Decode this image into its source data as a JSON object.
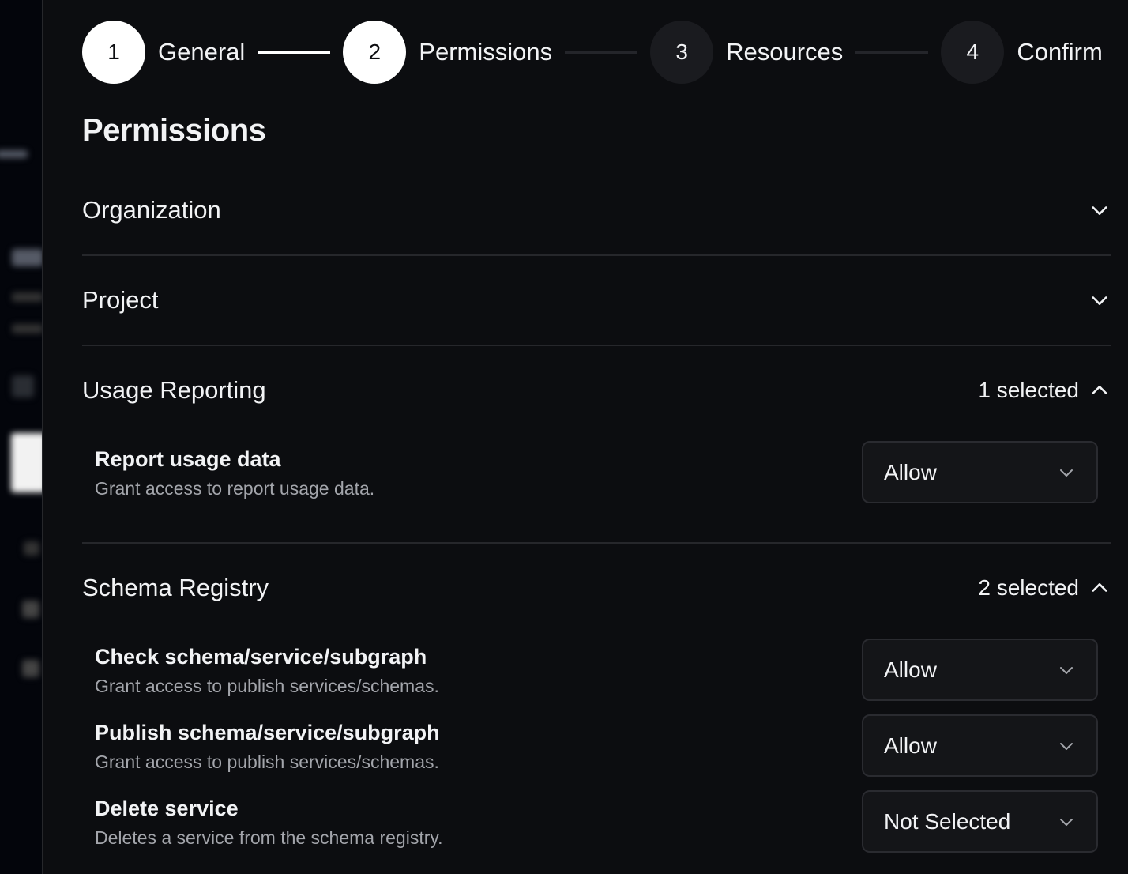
{
  "stepper": {
    "steps": [
      {
        "number": "1",
        "label": "General",
        "state": "complete"
      },
      {
        "number": "2",
        "label": "Permissions",
        "state": "current"
      },
      {
        "number": "3",
        "label": "Resources",
        "state": "upcoming"
      },
      {
        "number": "4",
        "label": "Confirm",
        "state": "upcoming"
      }
    ]
  },
  "page_title": "Permissions",
  "sections": [
    {
      "title": "Organization",
      "expanded": false
    },
    {
      "title": "Project",
      "expanded": false
    },
    {
      "title": "Usage Reporting",
      "expanded": true,
      "count": "1 selected",
      "items": [
        {
          "title": "Report usage data",
          "description": "Grant access to report usage data.",
          "value": "Allow"
        }
      ]
    },
    {
      "title": "Schema Registry",
      "expanded": true,
      "count": "2 selected",
      "items": [
        {
          "title": "Check schema/service/subgraph",
          "description": "Grant access to publish services/schemas.",
          "value": "Allow"
        },
        {
          "title": "Publish schema/service/subgraph",
          "description": "Grant access to publish services/schemas.",
          "value": "Allow"
        },
        {
          "title": "Delete service",
          "description": "Deletes a service from the schema registry.",
          "value": "Not Selected"
        }
      ]
    }
  ],
  "colors": {
    "background": "#0c0d10",
    "step_active": "#ffffff",
    "step_inactive": "#1a1b1f",
    "muted_text": "#a3a5ab"
  }
}
